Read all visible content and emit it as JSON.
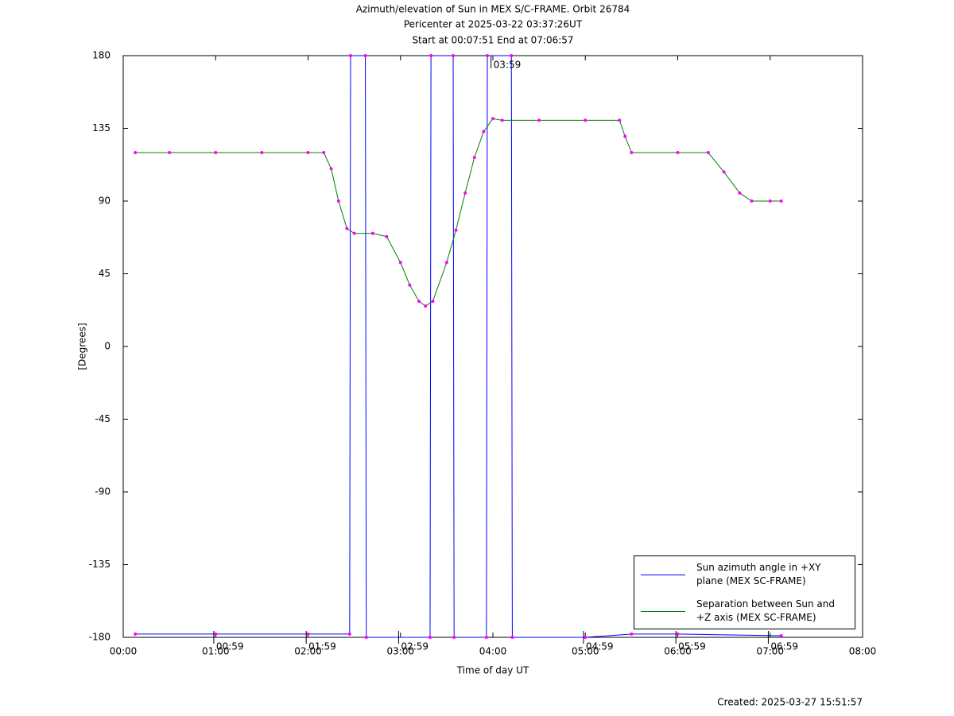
{
  "chart_data": {
    "type": "line",
    "title": "Azimuth/elevation of Sun in MEX S/C-FRAME.  Orbit 26784",
    "subtitle": [
      "Pericenter at 2025-03-22 03:37:26UT",
      "Start at 00:07:51 End at 07:06:57"
    ],
    "xlabel": "Time of day UT",
    "ylabel": "[Degrees]",
    "footer": "Created: 2025-03-27 15:51:57",
    "xlim": [
      0,
      8
    ],
    "xticks": [
      {
        "value": 0,
        "label": "00:00"
      },
      {
        "value": 1,
        "label": "01:00"
      },
      {
        "value": 2,
        "label": "02:00"
      },
      {
        "value": 3,
        "label": "03:00"
      },
      {
        "value": 4,
        "label": "04:00"
      },
      {
        "value": 5,
        "label": "05:00"
      },
      {
        "value": 6,
        "label": "06:00"
      },
      {
        "value": 7,
        "label": "07:00"
      },
      {
        "value": 8,
        "label": "08:00"
      }
    ],
    "ylim": [
      -180,
      180
    ],
    "yticks": [
      180,
      135,
      90,
      45,
      0,
      -45,
      -90,
      -135,
      -180
    ],
    "grid": false,
    "marker_color": "#ff00ff",
    "series": [
      {
        "name": "Sun azimuth angle in +XY plane (MEX SC-FRAME)",
        "color": "#0000ff",
        "x": [
          0.13,
          1.0,
          2.0,
          2.45,
          2.46,
          2.62,
          2.63,
          3.32,
          3.33,
          3.57,
          3.58,
          3.93,
          3.94,
          4.2,
          4.21,
          5.0,
          5.5,
          6.0,
          7.12
        ],
        "values": [
          -178,
          -178,
          -178,
          -178,
          180,
          180,
          -180,
          -180,
          180,
          180,
          -180,
          -180,
          180,
          180,
          -180,
          -180,
          -178,
          -178,
          -179
        ]
      },
      {
        "name": "Separation between Sun and +Z axis (MEX SC-FRAME)",
        "color": "#008000",
        "x": [
          0.13,
          0.5,
          1.0,
          1.5,
          2.0,
          2.17,
          2.25,
          2.33,
          2.42,
          2.5,
          2.7,
          2.85,
          3.0,
          3.1,
          3.2,
          3.27,
          3.35,
          3.5,
          3.6,
          3.7,
          3.8,
          3.9,
          4.0,
          4.1,
          4.5,
          5.0,
          5.37,
          5.43,
          5.5,
          6.0,
          6.33,
          6.5,
          6.67,
          6.8,
          7.0,
          7.12
        ],
        "values": [
          120,
          120,
          120,
          120,
          120,
          120,
          110,
          90,
          73,
          70,
          70,
          68,
          52,
          38,
          28,
          25,
          28,
          52,
          72,
          95,
          117,
          133,
          141,
          140,
          140,
          140,
          140,
          130,
          120,
          120,
          120,
          108,
          95,
          90,
          90,
          90
        ]
      }
    ],
    "annotations": [
      {
        "x": 0.98,
        "y": -180,
        "label": "00:59"
      },
      {
        "x": 1.98,
        "y": -180,
        "label": "01:59"
      },
      {
        "x": 2.98,
        "y": -180,
        "label": "02:59"
      },
      {
        "x": 3.98,
        "y": 180,
        "label": "03:59"
      },
      {
        "x": 4.98,
        "y": -180,
        "label": "04:59"
      },
      {
        "x": 5.98,
        "y": -180,
        "label": "05:59"
      },
      {
        "x": 6.98,
        "y": -180,
        "label": "06:59"
      }
    ]
  }
}
